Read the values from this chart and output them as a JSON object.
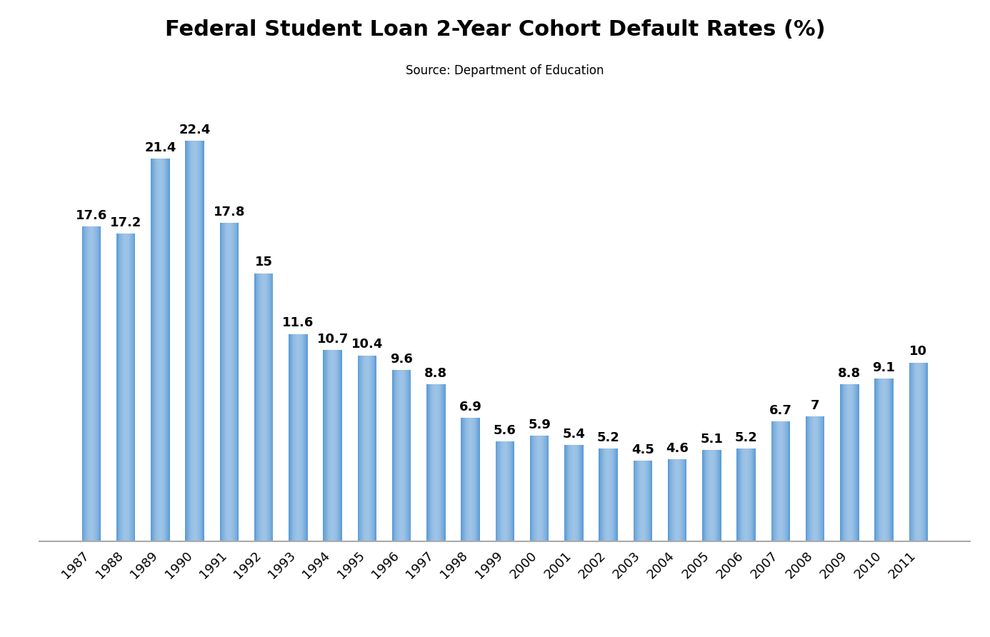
{
  "title": "Federal Student Loan 2-Year Cohort Default Rates (%)",
  "subtitle": "Source: Department of Education",
  "years": [
    1987,
    1988,
    1989,
    1990,
    1991,
    1992,
    1993,
    1994,
    1995,
    1996,
    1997,
    1998,
    1999,
    2000,
    2001,
    2002,
    2003,
    2004,
    2005,
    2006,
    2007,
    2008,
    2009,
    2010,
    2011
  ],
  "values": [
    17.6,
    17.2,
    21.4,
    22.4,
    17.8,
    15.0,
    11.6,
    10.7,
    10.4,
    9.6,
    8.8,
    6.9,
    5.6,
    5.9,
    5.4,
    5.2,
    4.5,
    4.6,
    5.1,
    5.2,
    6.7,
    7.0,
    8.8,
    9.1,
    10.0
  ],
  "bar_color_left": "#5b9bd5",
  "bar_color_center": "#9dc3e6",
  "bar_color_right": "#5b9bd5",
  "background_color": "#ffffff",
  "title_fontsize": 22,
  "subtitle_fontsize": 12,
  "label_fontsize": 13,
  "tick_fontsize": 13,
  "ylim": [
    0,
    26
  ],
  "title_fontweight": "bold",
  "bar_width": 0.55
}
